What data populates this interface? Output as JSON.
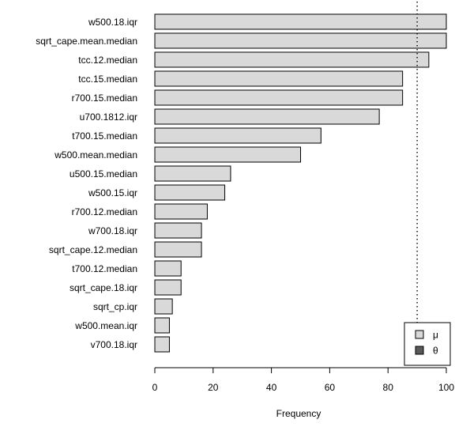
{
  "chart_data": {
    "type": "bar",
    "orientation": "horizontal",
    "categories": [
      "w500.18.iqr",
      "sqrt_cape.mean.median",
      "tcc.12.median",
      "tcc.15.median",
      "r700.15.median",
      "u700.1812.iqr",
      "t700.15.median",
      "w500.mean.median",
      "u500.15.median",
      "w500.15.iqr",
      "r700.12.median",
      "w700.18.iqr",
      "sqrt_cape.12.median",
      "t700.12.median",
      "sqrt_cape.18.iqr",
      "sqrt_cp.iqr",
      "w500.mean.iqr",
      "v700.18.iqr"
    ],
    "values": [
      100,
      100,
      94,
      85,
      85,
      77,
      57,
      50,
      26,
      24,
      18,
      16,
      16,
      9,
      9,
      6,
      5,
      5
    ],
    "xlabel": "Frequency",
    "ylabel": "",
    "xlim": [
      0,
      100
    ],
    "xticks": [
      0,
      20,
      40,
      60,
      80,
      100
    ],
    "reference_line": {
      "x": 90,
      "style": "dotted"
    },
    "grid": false,
    "legend": {
      "placement": "bottom-right",
      "entries": [
        {
          "label": "μ",
          "color": "#d9d9d9"
        },
        {
          "label": "θ",
          "color": "#595959"
        }
      ]
    },
    "bar_color": "#d9d9d9"
  }
}
